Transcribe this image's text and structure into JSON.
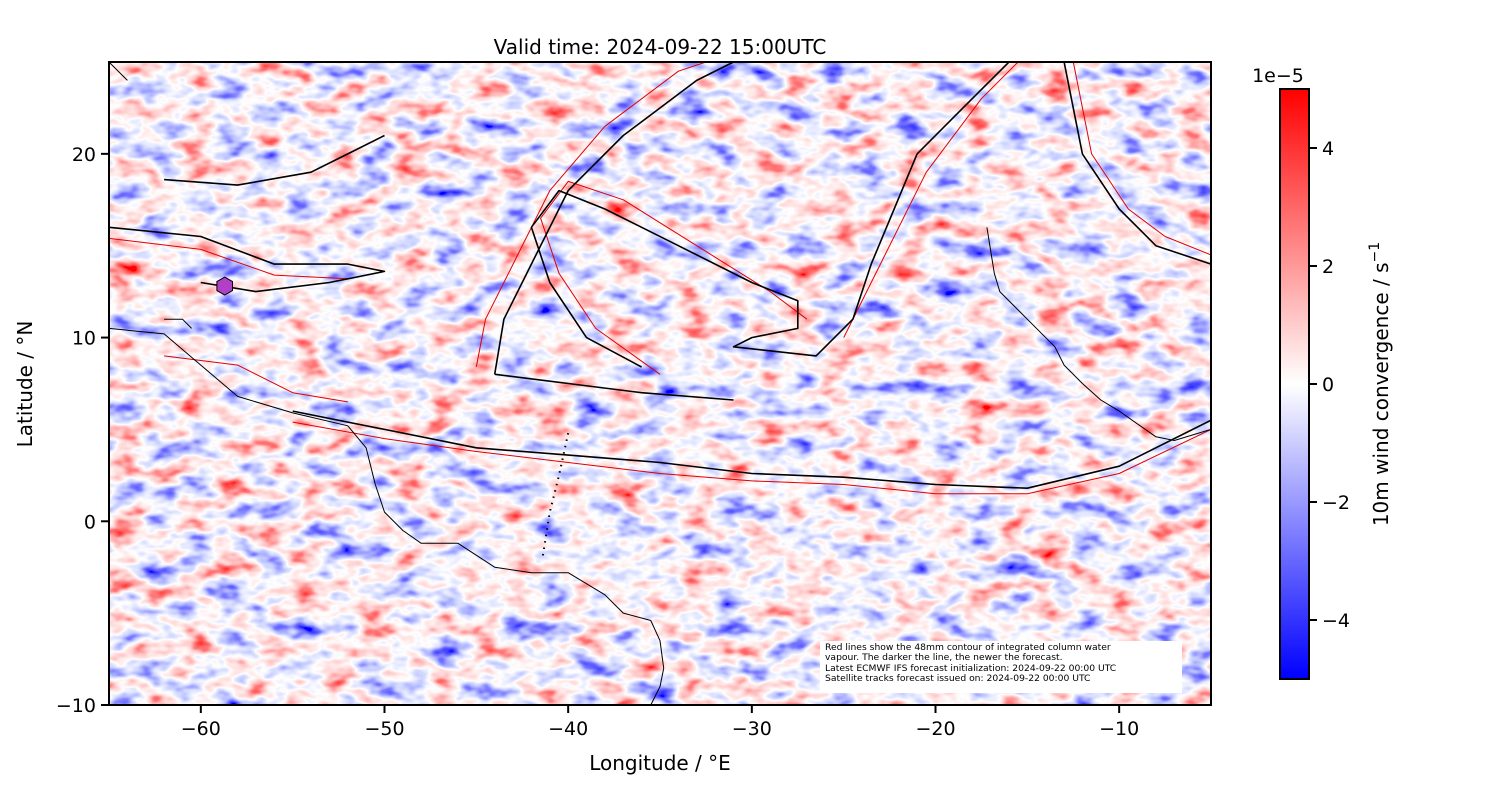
{
  "chart_data": {
    "type": "heatmap",
    "title": "Valid time: 2024-09-22 15:00UTC",
    "xlabel": "Longitude / °E",
    "ylabel": "Latitude / °N",
    "xlim": [
      -65,
      -5
    ],
    "ylim": [
      -10,
      25
    ],
    "xticks": [
      -60,
      -50,
      -40,
      -30,
      -20,
      -10
    ],
    "xtick_labels": [
      "−60",
      "−50",
      "−40",
      "−30",
      "−20",
      "−10"
    ],
    "yticks": [
      -10,
      0,
      10,
      20
    ],
    "ytick_labels": [
      "−10",
      "0",
      "10",
      "20"
    ],
    "grid": false,
    "colorbar": {
      "label": "10m wind convergence / s",
      "label_superscript": "−1",
      "offset_text": "1e−5",
      "range": [
        -5,
        5
      ],
      "ticks": [
        -4,
        -2,
        0,
        2,
        4
      ],
      "tick_labels": [
        "−4",
        "−2",
        "0",
        "2",
        "4"
      ],
      "colormap": "bwr",
      "colors": {
        "low": "#0000ff",
        "mid": "#ffffff",
        "high": "#ff0000"
      }
    },
    "latest_contour_color": "#000000",
    "older_contour_color": "#e00000",
    "coastline_color": "#000000",
    "contours_latest": [
      [
        [
          -55,
          6
        ],
        [
          -50,
          5
        ],
        [
          -45,
          4
        ],
        [
          -40,
          3.6
        ],
        [
          -35,
          3.2
        ],
        [
          -30,
          2.6
        ],
        [
          -25,
          2.4
        ],
        [
          -20,
          2
        ],
        [
          -15,
          1.8
        ],
        [
          -10,
          3
        ],
        [
          -5,
          5.5
        ]
      ],
      [
        [
          -44,
          8
        ],
        [
          -43.5,
          11
        ],
        [
          -42,
          14
        ],
        [
          -40,
          18
        ],
        [
          -37,
          21
        ],
        [
          -33,
          24
        ],
        [
          -31,
          25
        ]
      ],
      [
        [
          -44,
          8
        ],
        [
          -40,
          7.5
        ],
        [
          -36,
          7
        ],
        [
          -31,
          6.6
        ]
      ],
      [
        [
          -36,
          8.4
        ],
        [
          -39,
          10
        ],
        [
          -41,
          13
        ],
        [
          -42,
          16
        ],
        [
          -40.5,
          18
        ],
        [
          -38,
          17
        ],
        [
          -34,
          15
        ],
        [
          -30,
          13
        ],
        [
          -27.5,
          12
        ],
        [
          -27.5,
          10.5
        ],
        [
          -30,
          10
        ],
        [
          -31,
          9.5
        ],
        [
          -26.5,
          9
        ],
        [
          -25.5,
          10
        ],
        [
          -24.5,
          11
        ],
        [
          -23.5,
          14
        ],
        [
          -21,
          20
        ],
        [
          -18,
          23
        ],
        [
          -16,
          25
        ]
      ],
      [
        [
          -13,
          25
        ],
        [
          -12,
          20
        ],
        [
          -10,
          17
        ],
        [
          -8,
          15
        ],
        [
          -5,
          14
        ]
      ],
      [
        [
          -65,
          16
        ],
        [
          -60,
          15.5
        ],
        [
          -56,
          14
        ],
        [
          -52,
          14
        ],
        [
          -50,
          13.6
        ],
        [
          -53,
          13
        ],
        [
          -57,
          12.5
        ],
        [
          -60,
          13
        ]
      ],
      [
        [
          -62,
          18.6
        ],
        [
          -58,
          18.3
        ],
        [
          -54,
          19
        ],
        [
          -52,
          20
        ],
        [
          -50,
          21
        ]
      ]
    ],
    "contours_older": [
      [
        [
          -55,
          5.4
        ],
        [
          -50,
          4.5
        ],
        [
          -45,
          3.8
        ],
        [
          -40,
          3.2
        ],
        [
          -35,
          2.6
        ],
        [
          -30,
          2.2
        ],
        [
          -25,
          2
        ],
        [
          -20,
          1.5
        ],
        [
          -15,
          1.5
        ],
        [
          -10,
          2.6
        ],
        [
          -5,
          5
        ]
      ],
      [
        [
          -45,
          8.4
        ],
        [
          -44.5,
          11
        ],
        [
          -43,
          14
        ],
        [
          -41,
          18
        ],
        [
          -38,
          21.5
        ],
        [
          -34,
          24.5
        ],
        [
          -32.5,
          25
        ]
      ],
      [
        [
          -35,
          8
        ],
        [
          -38.5,
          10.5
        ],
        [
          -40.5,
          13.5
        ],
        [
          -41.5,
          16.5
        ],
        [
          -40,
          18.5
        ],
        [
          -37,
          17.5
        ],
        [
          -33,
          15
        ],
        [
          -29,
          12.5
        ],
        [
          -27,
          11
        ]
      ],
      [
        [
          -25,
          10
        ],
        [
          -23,
          14
        ],
        [
          -20.5,
          19
        ],
        [
          -17.5,
          23
        ],
        [
          -15.5,
          25
        ]
      ],
      [
        [
          -12.5,
          25
        ],
        [
          -11.5,
          20
        ],
        [
          -9.5,
          17
        ],
        [
          -7.5,
          15.5
        ],
        [
          -5,
          14.5
        ]
      ],
      [
        [
          -65,
          15.4
        ],
        [
          -60,
          14.8
        ],
        [
          -56,
          13.4
        ],
        [
          -52,
          13.2
        ]
      ],
      [
        [
          -62,
          9
        ],
        [
          -58,
          8.5
        ],
        [
          -55,
          7
        ],
        [
          -52,
          6.5
        ]
      ]
    ],
    "coastlines": [
      [
        [
          -65,
          10.5
        ],
        [
          -62,
          10.2
        ],
        [
          -60,
          8.5
        ],
        [
          -58,
          6.8
        ],
        [
          -55,
          5.9
        ],
        [
          -52,
          5.2
        ],
        [
          -51,
          4
        ],
        [
          -50.5,
          2
        ],
        [
          -50,
          0.5
        ],
        [
          -49,
          -0.5
        ],
        [
          -48,
          -1.2
        ],
        [
          -46,
          -1.2
        ],
        [
          -44,
          -2.5
        ],
        [
          -42,
          -2.8
        ],
        [
          -40,
          -2.8
        ],
        [
          -38,
          -4
        ],
        [
          -37,
          -5
        ],
        [
          -35.5,
          -5.4
        ],
        [
          -35,
          -6.5
        ],
        [
          -34.8,
          -8
        ],
        [
          -35,
          -9
        ],
        [
          -35.5,
          -10
        ]
      ],
      [
        [
          -17.2,
          16
        ],
        [
          -16.8,
          13.5
        ],
        [
          -16.5,
          12.5
        ],
        [
          -15,
          11
        ],
        [
          -13.5,
          9.5
        ],
        [
          -13,
          8.5
        ],
        [
          -12,
          7.5
        ],
        [
          -11,
          6.6
        ],
        [
          -10,
          6
        ],
        [
          -8,
          4.6
        ],
        [
          -7,
          4.4
        ],
        [
          -5,
          5
        ]
      ],
      [
        [
          -62,
          11
        ],
        [
          -61,
          11
        ],
        [
          -60.5,
          10.5
        ]
      ],
      [
        [
          -65,
          25
        ],
        [
          -64,
          24
        ]
      ]
    ],
    "satellite_track": [
      [
        -40,
        4.8
      ],
      [
        -40.5,
        2.5
      ],
      [
        -41,
        0.5
      ],
      [
        -41.4,
        -2
      ]
    ],
    "marker": {
      "lon": -58.7,
      "lat": 12.8,
      "shape": "hexagon",
      "color": "#b040c8"
    }
  },
  "annotation": {
    "lines": [
      "Red lines show the 48mm contour of integrated column water",
      "vapour. The darker the line, the newer the forecast.",
      "Latest ECMWF IFS forecast initialization: 2024-09-22 00:00 UTC",
      "Satellite tracks forecast issued on: 2024-09-22 00:00 UTC"
    ]
  }
}
